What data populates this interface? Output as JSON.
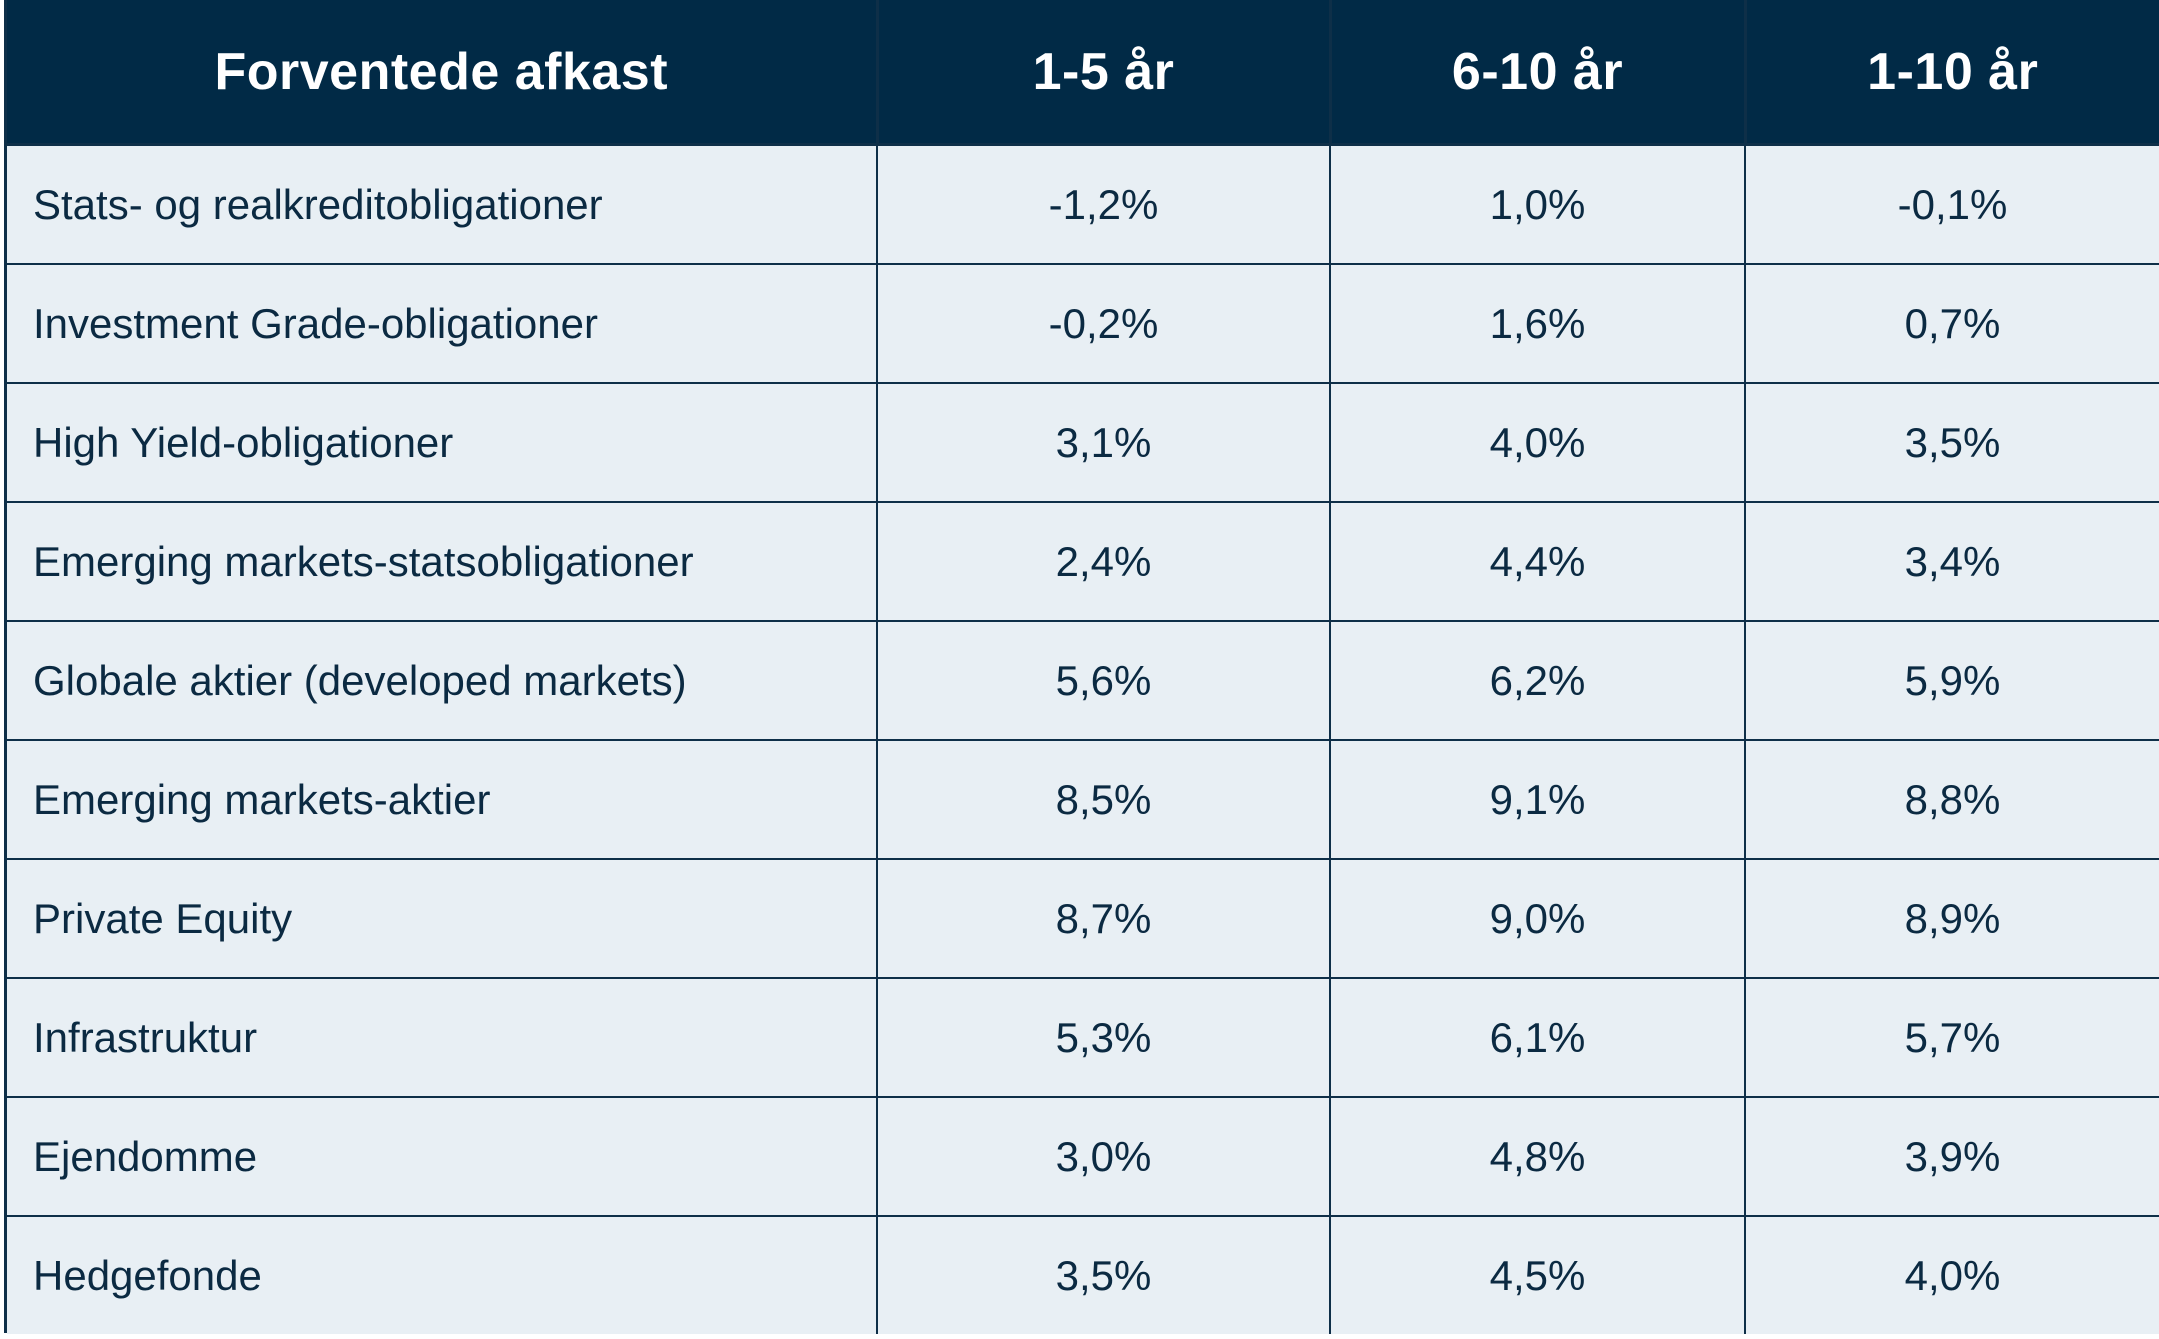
{
  "chart_data": {
    "type": "table",
    "columns": [
      "Forventede afkast",
      "1-5 år",
      "6-10 år",
      "1-10 år"
    ],
    "rows": [
      [
        "Stats- og realkreditobligationer",
        "-1,2%",
        "1,0%",
        "-0,1%"
      ],
      [
        "Investment Grade-obligationer",
        "-0,2%",
        "1,6%",
        "0,7%"
      ],
      [
        "High Yield-obligationer",
        "3,1%",
        "4,0%",
        "3,5%"
      ],
      [
        "Emerging markets-statsobligationer",
        "2,4%",
        "4,4%",
        "3,4%"
      ],
      [
        "Globale aktier (developed markets)",
        "5,6%",
        "6,2%",
        "5,9%"
      ],
      [
        "Emerging markets-aktier",
        "8,5%",
        "9,1%",
        "8,8%"
      ],
      [
        "Private Equity",
        "8,7%",
        "9,0%",
        "8,9%"
      ],
      [
        "Infrastruktur",
        "5,3%",
        "6,1%",
        "5,7%"
      ],
      [
        "Ejendomme",
        "3,0%",
        "4,8%",
        "3,9%"
      ],
      [
        "Hedgefonde",
        "3,5%",
        "4,5%",
        "4,0%"
      ]
    ]
  },
  "colors": {
    "header_background": "#012a46",
    "header_text": "#ffffff",
    "cell_background": "#e8eff4",
    "cell_text": "#0b2a42",
    "border": "#0e2f48"
  }
}
